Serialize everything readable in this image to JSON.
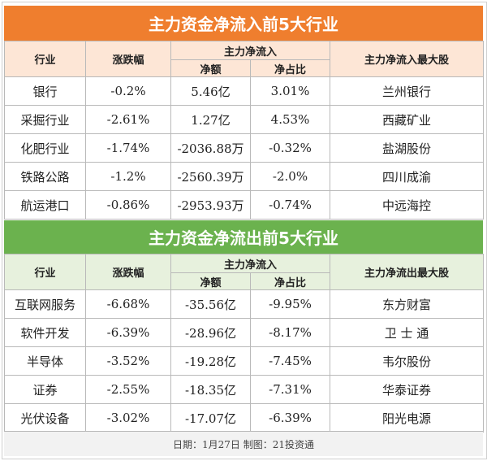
{
  "inflow": {
    "title": "主力资金净流入前5大行业",
    "headers": {
      "industry": "行业",
      "change": "涨跌幅",
      "net_group": "主力净流入",
      "net_amount": "净额",
      "net_ratio": "净占比",
      "top_stock": "主力净流入最大股"
    },
    "rows": [
      {
        "industry": "银行",
        "change": "-0.2%",
        "amount": "5.46亿",
        "ratio": "3.01%",
        "stock": "兰州银行"
      },
      {
        "industry": "采掘行业",
        "change": "-2.61%",
        "amount": "1.27亿",
        "ratio": "4.53%",
        "stock": "西藏矿业"
      },
      {
        "industry": "化肥行业",
        "change": "-1.74%",
        "amount": "-2036.88万",
        "ratio": "-0.32%",
        "stock": "盐湖股份"
      },
      {
        "industry": "铁路公路",
        "change": "-1.2%",
        "amount": "-2560.39万",
        "ratio": "-2.0%",
        "stock": "四川成渝"
      },
      {
        "industry": "航运港口",
        "change": "-0.86%",
        "amount": "-2953.93万",
        "ratio": "-0.74%",
        "stock": "中远海控"
      }
    ]
  },
  "outflow": {
    "title": "主力资金净流出前5大行业",
    "headers": {
      "industry": "行业",
      "change": "涨跌幅",
      "net_group": "主力净流入",
      "net_amount": "净额",
      "net_ratio": "净占比",
      "top_stock": "主力净流出最大股"
    },
    "rows": [
      {
        "industry": "互联网服务",
        "change": "-6.68%",
        "amount": "-35.56亿",
        "ratio": "-9.95%",
        "stock": "东方财富"
      },
      {
        "industry": "软件开发",
        "change": "-6.39%",
        "amount": "-28.96亿",
        "ratio": "-8.17%",
        "stock": "卫 士 通"
      },
      {
        "industry": "半导体",
        "change": "-3.52%",
        "amount": "-19.28亿",
        "ratio": "-7.45%",
        "stock": "韦尔股份"
      },
      {
        "industry": "证券",
        "change": "-2.55%",
        "amount": "-18.35亿",
        "ratio": "-7.31%",
        "stock": "华泰证券"
      },
      {
        "industry": "光伏设备",
        "change": "-3.02%",
        "amount": "-17.07亿",
        "ratio": "-6.39%",
        "stock": "阳光电源"
      }
    ]
  },
  "footer": "日期：1月27日  制图：21投资通"
}
